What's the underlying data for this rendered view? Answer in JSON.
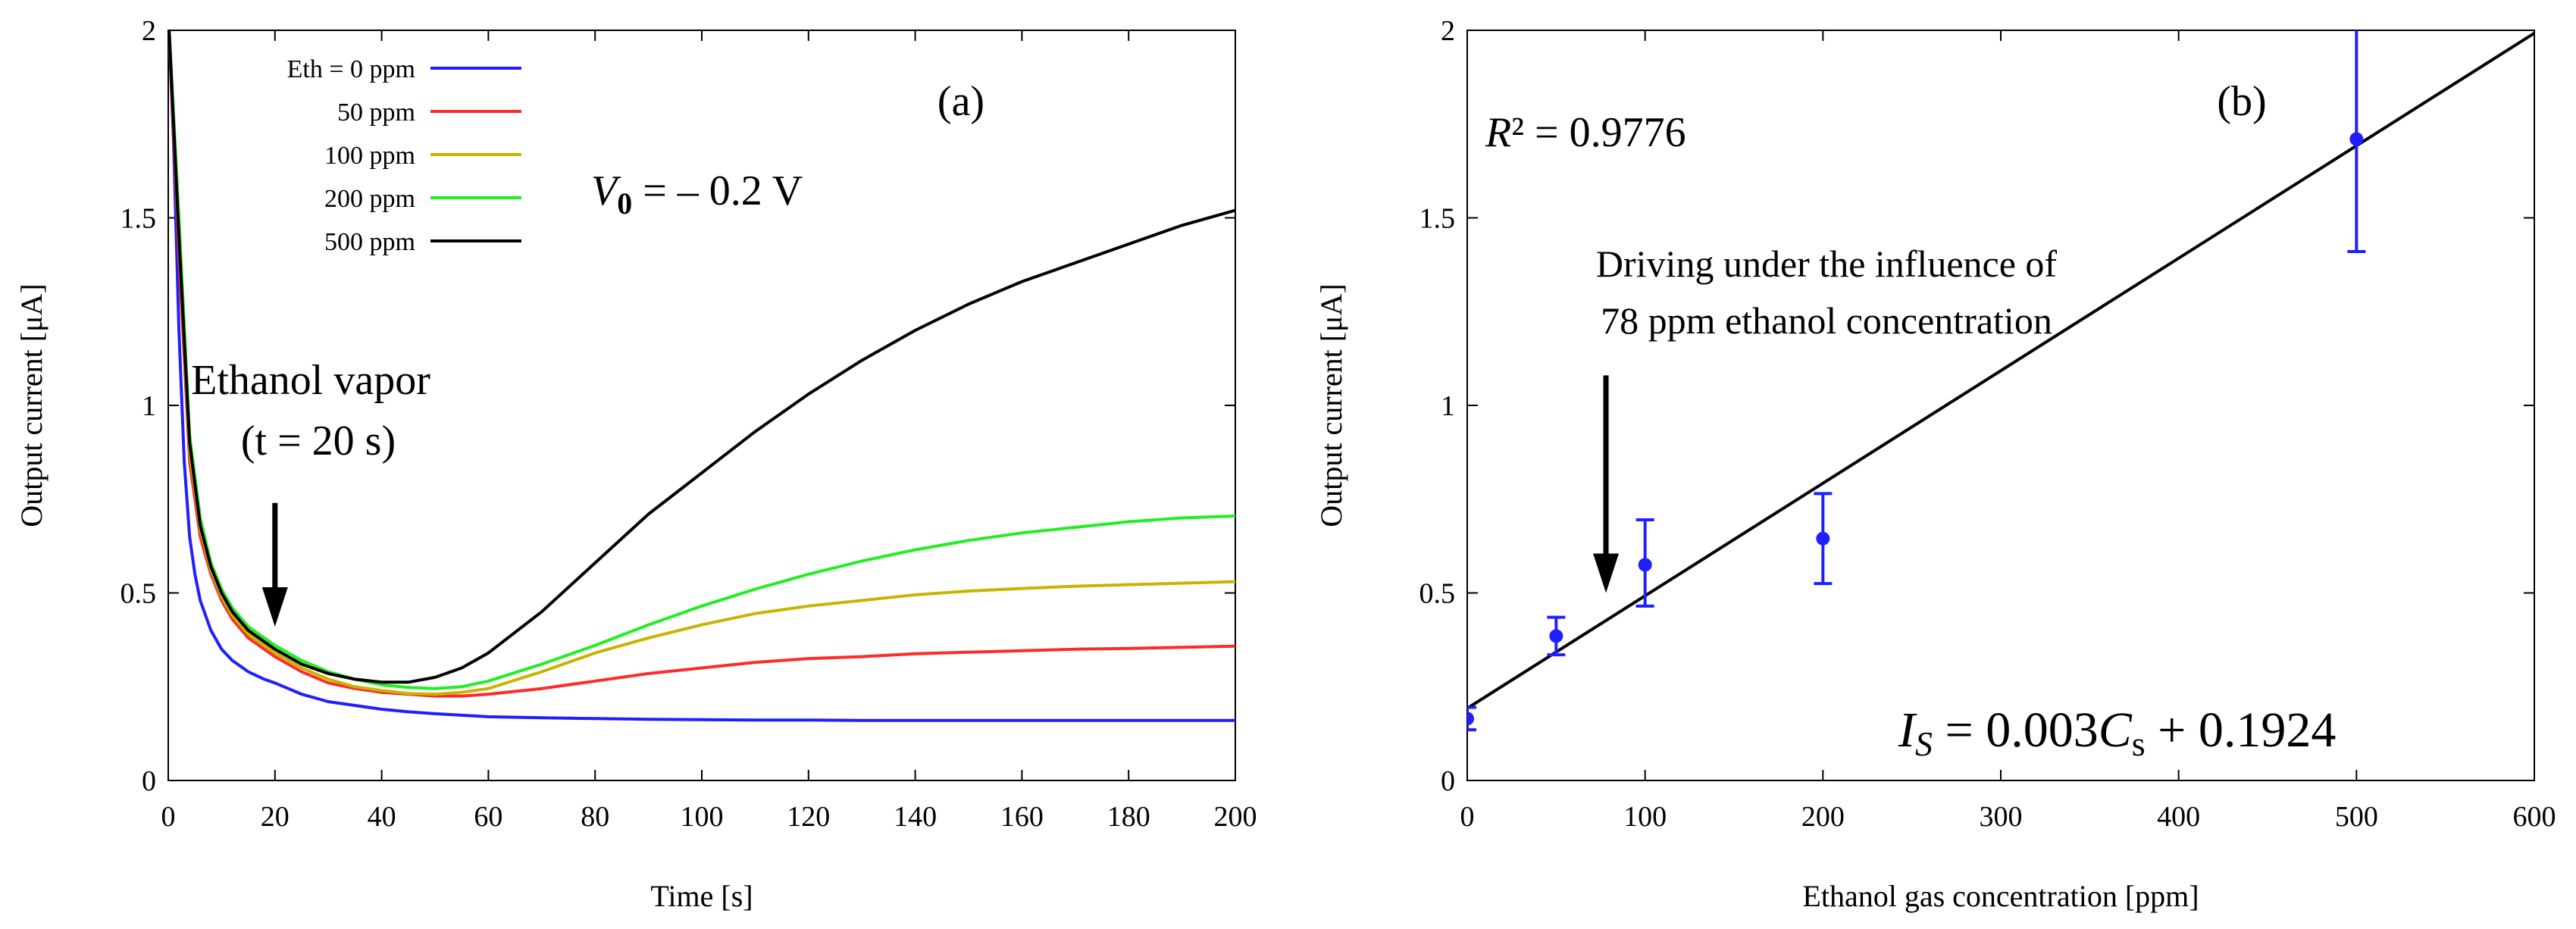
{
  "chart_data": [
    {
      "panel": "a",
      "type": "line",
      "panel_label": "(a)",
      "xlabel": "Time [s]",
      "ylabel": "Output current [μA]",
      "xlim": [
        0,
        200
      ],
      "ylim": [
        0,
        2
      ],
      "xticks": [
        "0",
        "20",
        "40",
        "60",
        "80",
        "100",
        "120",
        "140",
        "160",
        "180",
        "200"
      ],
      "yticks": [
        "0",
        "0.5",
        "1",
        "1.5",
        "2"
      ],
      "legend": {
        "position": "top-left",
        "entries": [
          "Eth = 0 ppm",
          "50 ppm",
          "100 ppm",
          "200 ppm",
          "500 ppm"
        ]
      },
      "series": [
        {
          "name": "Eth = 0 ppm",
          "color": "#1f1fff",
          "x": [
            0,
            1,
            2,
            3,
            4,
            5,
            6,
            8,
            10,
            12,
            15,
            18,
            20,
            25,
            30,
            35,
            40,
            45,
            50,
            55,
            60,
            70,
            80,
            90,
            100,
            110,
            120,
            130,
            140,
            150,
            160,
            170,
            180,
            190,
            200
          ],
          "y": [
            2.05,
            1.7,
            1.2,
            0.85,
            0.65,
            0.55,
            0.48,
            0.4,
            0.35,
            0.32,
            0.29,
            0.27,
            0.26,
            0.23,
            0.21,
            0.2,
            0.19,
            0.183,
            0.178,
            0.174,
            0.17,
            0.167,
            0.165,
            0.163,
            0.162,
            0.161,
            0.161,
            0.16,
            0.16,
            0.16,
            0.16,
            0.16,
            0.16,
            0.16,
            0.16
          ]
        },
        {
          "name": "50 ppm",
          "color": "#ff2a2a",
          "x": [
            0,
            2,
            4,
            6,
            8,
            10,
            12,
            15,
            18,
            20,
            25,
            30,
            35,
            40,
            45,
            50,
            55,
            60,
            70,
            80,
            90,
            100,
            110,
            120,
            130,
            140,
            150,
            160,
            170,
            180,
            190,
            200
          ],
          "y": [
            2.05,
            1.4,
            0.85,
            0.65,
            0.55,
            0.48,
            0.43,
            0.38,
            0.35,
            0.33,
            0.29,
            0.26,
            0.245,
            0.235,
            0.23,
            0.225,
            0.225,
            0.23,
            0.245,
            0.265,
            0.285,
            0.3,
            0.315,
            0.325,
            0.33,
            0.338,
            0.342,
            0.346,
            0.35,
            0.352,
            0.355,
            0.358
          ]
        },
        {
          "name": "100 ppm",
          "color": "#c8b400",
          "x": [
            0,
            2,
            4,
            6,
            8,
            10,
            12,
            15,
            18,
            20,
            25,
            30,
            35,
            40,
            45,
            50,
            55,
            60,
            70,
            80,
            90,
            100,
            110,
            120,
            130,
            140,
            150,
            160,
            170,
            180,
            190,
            200
          ],
          "y": [
            2.05,
            1.45,
            0.88,
            0.67,
            0.56,
            0.49,
            0.44,
            0.39,
            0.36,
            0.34,
            0.3,
            0.27,
            0.25,
            0.24,
            0.232,
            0.23,
            0.235,
            0.245,
            0.29,
            0.34,
            0.38,
            0.415,
            0.445,
            0.465,
            0.48,
            0.495,
            0.505,
            0.512,
            0.518,
            0.522,
            0.526,
            0.53
          ]
        },
        {
          "name": "200 ppm",
          "color": "#22ee22",
          "x": [
            0,
            2,
            4,
            6,
            8,
            10,
            12,
            15,
            18,
            20,
            25,
            30,
            35,
            40,
            45,
            50,
            55,
            60,
            70,
            80,
            90,
            100,
            110,
            120,
            130,
            140,
            150,
            160,
            170,
            180,
            190,
            200
          ],
          "y": [
            2.05,
            1.5,
            0.92,
            0.7,
            0.58,
            0.51,
            0.46,
            0.41,
            0.38,
            0.36,
            0.32,
            0.29,
            0.27,
            0.255,
            0.248,
            0.245,
            0.25,
            0.265,
            0.31,
            0.36,
            0.415,
            0.465,
            0.51,
            0.55,
            0.585,
            0.615,
            0.64,
            0.66,
            0.675,
            0.69,
            0.7,
            0.705
          ]
        },
        {
          "name": "500 ppm",
          "color": "#000000",
          "x": [
            0,
            2,
            4,
            6,
            8,
            10,
            12,
            15,
            18,
            20,
            25,
            30,
            35,
            40,
            45,
            50,
            55,
            60,
            70,
            80,
            90,
            100,
            110,
            120,
            130,
            140,
            150,
            160,
            170,
            180,
            190,
            200
          ],
          "y": [
            2.05,
            1.45,
            0.9,
            0.68,
            0.57,
            0.5,
            0.45,
            0.4,
            0.37,
            0.35,
            0.31,
            0.285,
            0.27,
            0.262,
            0.262,
            0.275,
            0.3,
            0.34,
            0.45,
            0.58,
            0.71,
            0.82,
            0.93,
            1.03,
            1.12,
            1.2,
            1.27,
            1.33,
            1.38,
            1.43,
            1.48,
            1.52
          ]
        }
      ],
      "annotations": {
        "ethanol_line1": "Ethanol vapor",
        "ethanol_line2": "(t = 20 s)",
        "arrow_at": {
          "x": 20,
          "y_from": 0.74,
          "y_to": 0.41
        },
        "voltage_var": "V",
        "voltage_sub": "0",
        "voltage_rest": " = – 0.2 V"
      }
    },
    {
      "panel": "b",
      "type": "scatter",
      "panel_label": "(b)",
      "xlabel": "Ethanol gas concentration [ppm]",
      "ylabel": "Output current [μA]",
      "xlim": [
        0,
        600
      ],
      "ylim": [
        0,
        2
      ],
      "xticks": [
        "0",
        "100",
        "200",
        "300",
        "400",
        "500",
        "600"
      ],
      "yticks": [
        "0",
        "0.5",
        "1",
        "1.5",
        "2"
      ],
      "points": [
        {
          "x": 0,
          "y": 0.165,
          "err_low": 0.03,
          "err_high": 0.03
        },
        {
          "x": 50,
          "y": 0.385,
          "err_low": 0.05,
          "err_high": 0.05
        },
        {
          "x": 100,
          "y": 0.575,
          "err_low": 0.11,
          "err_high": 0.12
        },
        {
          "x": 200,
          "y": 0.645,
          "err_low": 0.12,
          "err_high": 0.12
        },
        {
          "x": 500,
          "y": 1.71,
          "err_low": 0.3,
          "err_high": 0.3
        }
      ],
      "point_color": "#1f1fff",
      "fit": {
        "slope": 0.003,
        "intercept": 0.1924,
        "color": "#000000"
      },
      "annotations": {
        "r2_var": "R",
        "r2_rest": "² = 0.9776",
        "dui_line1": "Driving under the influence of",
        "dui_line2": "78 ppm ethanol concentration",
        "arrow_at": {
          "x": 78,
          "y_from": 1.08,
          "y_to": 0.5
        },
        "eq_var1": "I",
        "eq_sub1": "S",
        "eq_mid": " = 0.003",
        "eq_var2": "C",
        "eq_sub2": "s",
        "eq_rest": " + 0.1924"
      }
    }
  ]
}
